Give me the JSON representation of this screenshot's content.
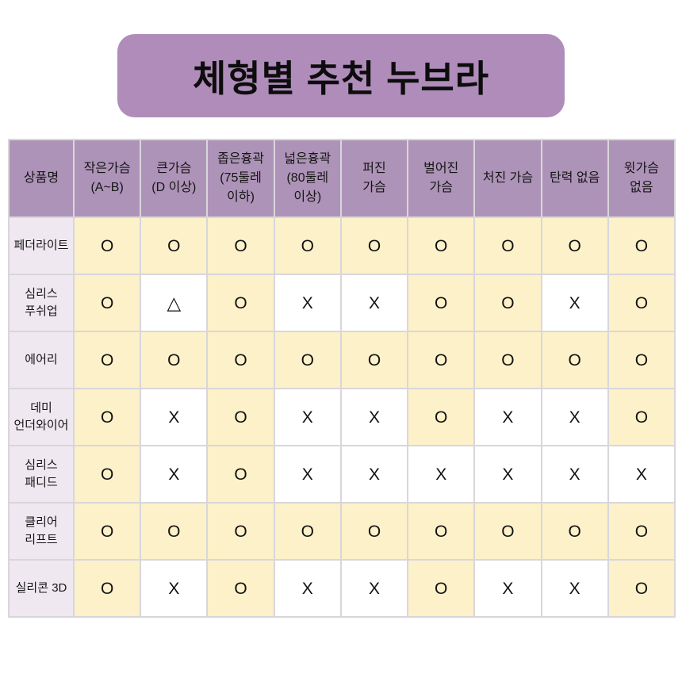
{
  "title": "체형별 추천 누브라",
  "colors": {
    "banner_bg": "#af8cba",
    "header_bg": "#ae93b8",
    "name_column_bg": "#f0e8f0",
    "yes_cell_bg": "#fcf1c8",
    "no_cell_bg": "#ffffff",
    "grid_line": "#d9d6db",
    "text": "#141414"
  },
  "symbols": {
    "yes": "O",
    "no": "X",
    "partial": "△"
  },
  "chart_data": {
    "type": "table",
    "title": "체형별 추천 누브라",
    "columns": [
      "상품명",
      "작은가슴\n(A~B)",
      "큰가슴\n(D 이상)",
      "좁은흉곽\n(75둘레\n이하)",
      "넓은흉곽\n(80둘레\n이상)",
      "퍼진\n가슴",
      "벌어진\n가슴",
      "처진 가슴",
      "탄력 없음",
      "윗가슴\n없음"
    ],
    "rows": [
      {
        "name": "페더라이트",
        "values": [
          "O",
          "O",
          "O",
          "O",
          "O",
          "O",
          "O",
          "O",
          "O"
        ]
      },
      {
        "name": "심리스\n푸쉬업",
        "values": [
          "O",
          "△",
          "O",
          "X",
          "X",
          "O",
          "O",
          "X",
          "O"
        ]
      },
      {
        "name": "에어리",
        "values": [
          "O",
          "O",
          "O",
          "O",
          "O",
          "O",
          "O",
          "O",
          "O"
        ]
      },
      {
        "name": "데미\n언더와이어",
        "values": [
          "O",
          "X",
          "O",
          "X",
          "X",
          "O",
          "X",
          "X",
          "O"
        ]
      },
      {
        "name": "심리스\n패디드",
        "values": [
          "O",
          "X",
          "O",
          "X",
          "X",
          "X",
          "X",
          "X",
          "X"
        ]
      },
      {
        "name": "클리어\n리프트",
        "values": [
          "O",
          "O",
          "O",
          "O",
          "O",
          "O",
          "O",
          "O",
          "O"
        ]
      },
      {
        "name": "실리콘 3D",
        "values": [
          "O",
          "X",
          "O",
          "X",
          "X",
          "O",
          "X",
          "X",
          "O"
        ]
      }
    ]
  }
}
